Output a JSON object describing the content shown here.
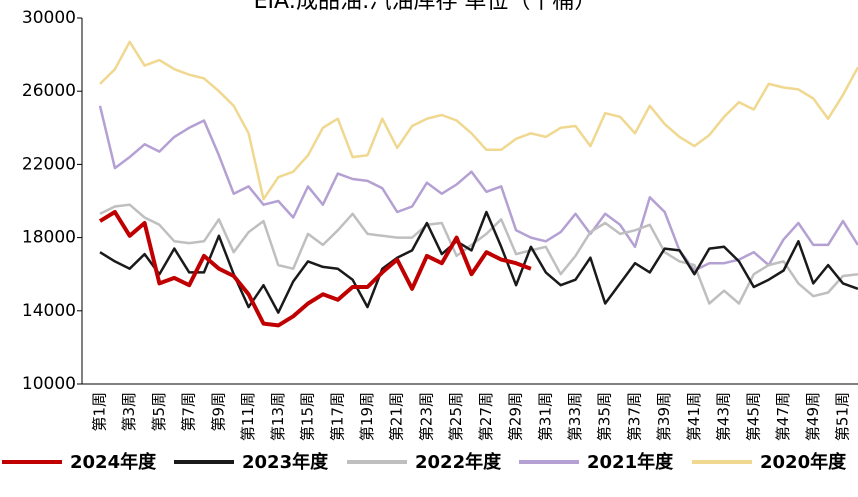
{
  "chart_data": {
    "type": "line",
    "title": "EIA:成品油:汽油库存 单位（千桶）",
    "categories": [
      "第1周",
      null,
      "第3周",
      null,
      "第5周",
      null,
      "第7周",
      null,
      "第9周",
      null,
      "第11周",
      null,
      "第13周",
      null,
      "第15周",
      null,
      "第17周",
      null,
      "第19周",
      null,
      "第21周",
      null,
      "第23周",
      null,
      "第25周",
      null,
      "第27周",
      null,
      "第29周",
      null,
      "第31周",
      null,
      "第33周",
      null,
      "第35周",
      null,
      "第37周",
      null,
      "第39周",
      null,
      "第41周",
      null,
      "第43周",
      null,
      "第45周",
      null,
      "第47周",
      null,
      "第49周",
      null,
      "第51周",
      null
    ],
    "ylim": [
      10000,
      30000
    ],
    "yticks": [
      10000,
      14000,
      18000,
      22000,
      26000,
      30000
    ],
    "grid": false,
    "series": [
      {
        "name": "2024年度",
        "color": "#c00000",
        "values": [
          18900,
          19400,
          18100,
          18800,
          15500,
          15800,
          15400,
          17000,
          16300,
          15900,
          14900,
          13300,
          13200,
          13700,
          14400,
          14900,
          14600,
          15300,
          15300,
          16100,
          16800,
          15200,
          17000,
          16600,
          18000,
          16000,
          17200,
          16800,
          16600,
          16300,
          null,
          null,
          null,
          null,
          null,
          null,
          null,
          null,
          null,
          null,
          null,
          null,
          null,
          null,
          null,
          null,
          null,
          null,
          null,
          null,
          null,
          null
        ]
      },
      {
        "name": "2023年度",
        "color": "#1a1a1a",
        "values": [
          17200,
          16700,
          16300,
          17100,
          16000,
          17400,
          16100,
          16100,
          18100,
          16000,
          14200,
          15400,
          13900,
          15600,
          16700,
          16400,
          16300,
          15700,
          14200,
          16300,
          16900,
          17300,
          18800,
          17100,
          17800,
          17300,
          19400,
          17500,
          15400,
          17500,
          16100,
          15400,
          15700,
          16900,
          14400,
          15500,
          16600,
          16100,
          17400,
          17300,
          16000,
          17400,
          17500,
          16700,
          15300,
          15700,
          16200,
          17800,
          15500,
          16500,
          15500,
          15200
        ]
      },
      {
        "name": "2022年度",
        "color": "#bfbfbf",
        "values": [
          19300,
          19700,
          19800,
          19100,
          18700,
          17800,
          17700,
          17800,
          19000,
          17200,
          18300,
          18900,
          16500,
          16300,
          18200,
          17600,
          18400,
          19300,
          18200,
          18100,
          18000,
          18000,
          18700,
          18800,
          17000,
          17600,
          18200,
          19000,
          17100,
          17300,
          17500,
          16000,
          17000,
          18300,
          18800,
          18200,
          18400,
          18700,
          17200,
          16700,
          16500,
          14400,
          15100,
          14400,
          16000,
          16500,
          16700,
          15500,
          14800,
          15000,
          15900,
          16000
        ]
      },
      {
        "name": "2021年度",
        "color": "#b4a0d2",
        "values": [
          25200,
          21800,
          22400,
          23100,
          22700,
          23500,
          24000,
          24400,
          22500,
          20400,
          20800,
          19800,
          20000,
          19100,
          20800,
          19800,
          21500,
          21200,
          21100,
          20700,
          19400,
          19700,
          21000,
          20400,
          20900,
          21600,
          20500,
          20800,
          18400,
          18000,
          17800,
          18300,
          19300,
          18200,
          19300,
          18700,
          17500,
          20200,
          19400,
          17300,
          16200,
          16600,
          16600,
          16800,
          17200,
          16500,
          17900,
          18800,
          17600,
          17600,
          18900,
          17600
        ]
      },
      {
        "name": "2020年度",
        "color": "#f0d890",
        "values": [
          26400,
          27200,
          28700,
          27400,
          27700,
          27200,
          26900,
          26700,
          26000,
          25200,
          23700,
          20100,
          21300,
          21600,
          22500,
          24000,
          24500,
          22400,
          22500,
          24500,
          22900,
          24100,
          24500,
          24700,
          24400,
          23700,
          22800,
          22800,
          23400,
          23700,
          23500,
          24000,
          24100,
          23000,
          24800,
          24600,
          23700,
          25200,
          24200,
          23500,
          23000,
          23600,
          24600,
          25400,
          25000,
          26400,
          26200,
          26100,
          25600,
          24500,
          25800,
          27300
        ]
      }
    ]
  }
}
